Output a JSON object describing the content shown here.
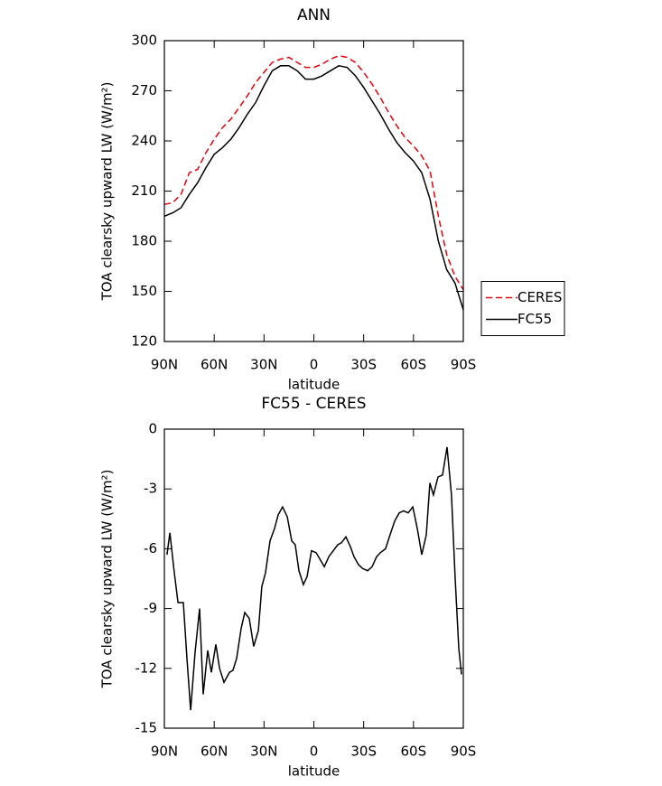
{
  "chart_data": [
    {
      "type": "line",
      "title": "ANN",
      "x_label": "latitude",
      "y_label": "TOA clearsky upward LW (W/m²)",
      "x": [
        90,
        85,
        80,
        75,
        70,
        65,
        60,
        55,
        50,
        45,
        40,
        35,
        30,
        25,
        20,
        15,
        10,
        5,
        0,
        -5,
        -10,
        -15,
        -20,
        -25,
        -30,
        -35,
        -40,
        -45,
        -50,
        -55,
        -60,
        -65,
        -70,
        -75,
        -80,
        -85,
        -90
      ],
      "series": [
        {
          "name": "CERES",
          "color": "#e8000b",
          "style": "dashed",
          "values": [
            202,
            203,
            208,
            221,
            223,
            233,
            241,
            248,
            253,
            260,
            267,
            275,
            281,
            287,
            289,
            290,
            287,
            284,
            284,
            286,
            289,
            291,
            290,
            287,
            281,
            274,
            266,
            257,
            249,
            242,
            237,
            231,
            222,
            195,
            172,
            159,
            151
          ]
        },
        {
          "name": "FC55",
          "color": "#000000",
          "style": "solid",
          "values": [
            195,
            197,
            200,
            208,
            215,
            224,
            232,
            236,
            241,
            248,
            256,
            263,
            273,
            282,
            285,
            285,
            282,
            277,
            277,
            279,
            282,
            285,
            284,
            279,
            272,
            264,
            256,
            247,
            239,
            233,
            228,
            221,
            205,
            180,
            163,
            155,
            139
          ]
        }
      ],
      "xlim": [
        90,
        -90
      ],
      "xticks": [
        {
          "value": 90,
          "label": "90N"
        },
        {
          "value": 60,
          "label": "60N"
        },
        {
          "value": 30,
          "label": "30N"
        },
        0,
        {
          "value": -30,
          "label": "30S"
        },
        {
          "value": -60,
          "label": "60S"
        },
        {
          "value": -90,
          "label": "90S"
        }
      ],
      "ylim": [
        120,
        300
      ],
      "yticks": [
        120,
        150,
        180,
        210,
        240,
        270,
        300
      ],
      "legend": "right"
    },
    {
      "type": "line",
      "title": "FC55 - CERES",
      "x_label": "latitude",
      "y_label": "TOA clearsky upward LW (W/m²)",
      "x": [
        88.4,
        86.7,
        84,
        81.8,
        78.6,
        76.4,
        74.2,
        71.5,
        68.8,
        66.6,
        63.9,
        61.7,
        59,
        56.8,
        54.1,
        50.8,
        48.7,
        46.5,
        43.8,
        41.6,
        38.9,
        36.2,
        33.4,
        31.3,
        29.1,
        26.4,
        23.7,
        21.5,
        18.8,
        16,
        13.3,
        11.2,
        9,
        6.3,
        4.1,
        1.4,
        -1.4,
        -3.5,
        -6.3,
        -9,
        -11.7,
        -14.4,
        -16.6,
        -19.3,
        -22,
        -24.2,
        -26.9,
        -29.6,
        -32.4,
        -35.1,
        -37.8,
        -40,
        -43.2,
        -45.9,
        -48.7,
        -51.4,
        -54.1,
        -56.8,
        -59.6,
        -62.3,
        -65,
        -67.7,
        -69.9,
        -72,
        -74.8,
        -77.5,
        -80.2,
        -82.9,
        -85.1,
        -87.3,
        -88.9
      ],
      "series": [
        {
          "color": "#000000",
          "style": "solid",
          "values": [
            -6.3,
            -5.2,
            -7.2,
            -8.7,
            -8.7,
            -11.5,
            -14.1,
            -11.2,
            -9.0,
            -13.3,
            -11.1,
            -12.2,
            -10.8,
            -12,
            -12.7,
            -12.2,
            -12.1,
            -11.5,
            -10.0,
            -9.2,
            -9.5,
            -10.9,
            -10.1,
            -7.9,
            -7.2,
            -5.6,
            -5.0,
            -4.3,
            -3.9,
            -4.4,
            -5.6,
            -5.8,
            -7.1,
            -7.8,
            -7.4,
            -6.1,
            -6.2,
            -6.5,
            -6.9,
            -6.4,
            -6.1,
            -5.8,
            -5.7,
            -5.4,
            -5.9,
            -6.4,
            -6.8,
            -7.0,
            -7.1,
            -6.9,
            -6.4,
            -6.2,
            -6.0,
            -5.3,
            -4.6,
            -4.2,
            -4.1,
            -4.2,
            -3.9,
            -5.0,
            -6.3,
            -5.3,
            -2.7,
            -3.3,
            -2.4,
            -2.3,
            -0.9,
            -3.3,
            -7.5,
            -11.0,
            -12.3
          ]
        }
      ],
      "xlim": [
        90,
        -90
      ],
      "xticks": [
        {
          "value": 90,
          "label": "90N"
        },
        {
          "value": 60,
          "label": "60N"
        },
        {
          "value": 30,
          "label": "30N"
        },
        0,
        {
          "value": -30,
          "label": "30S"
        },
        {
          "value": -60,
          "label": "60S"
        },
        {
          "value": -90,
          "label": "90S"
        }
      ],
      "ylim": [
        -15,
        0
      ],
      "yticks": [
        -15,
        -12,
        -9,
        -6,
        -3,
        0
      ]
    }
  ]
}
